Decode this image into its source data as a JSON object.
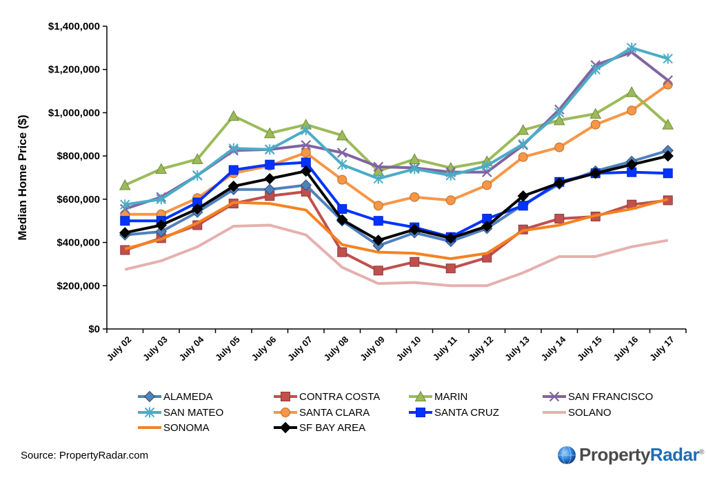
{
  "chart_data": {
    "type": "line",
    "title": "",
    "xlabel": "",
    "ylabel": "Median Home Price ($)",
    "ylim": [
      0,
      1400000
    ],
    "ytick_values": [
      0,
      200000,
      400000,
      600000,
      800000,
      1000000,
      1200000,
      1400000
    ],
    "ytick_labels": [
      "$0",
      "$200,000",
      "$400,000",
      "$600,000",
      "$800,000",
      "$1,000,000",
      "$1,200,000",
      "$1,400,000"
    ],
    "categories": [
      "July 02",
      "July 03",
      "July 04",
      "July 05",
      "July 06",
      "July 07",
      "July 08",
      "July 09",
      "July 10",
      "July 11",
      "July 12",
      "July 13",
      "July 14",
      "July 15",
      "July 16",
      "July 17"
    ],
    "legend_position": "bottom",
    "series": [
      {
        "name": "ALAMEDA",
        "color": "#4f81bd",
        "marker": "diamond",
        "values": [
          435000,
          450000,
          540000,
          645000,
          645000,
          665000,
          500000,
          385000,
          445000,
          405000,
          465000,
          575000,
          670000,
          730000,
          775000,
          825000
        ]
      },
      {
        "name": "CONTRA COSTA",
        "color": "#c0504d",
        "marker": "square",
        "values": [
          365000,
          420000,
          480000,
          580000,
          615000,
          635000,
          355000,
          270000,
          310000,
          280000,
          330000,
          460000,
          510000,
          520000,
          575000,
          595000
        ]
      },
      {
        "name": "MARIN",
        "color": "#9bbb59",
        "marker": "triangle",
        "values": [
          665000,
          740000,
          785000,
          985000,
          905000,
          945000,
          895000,
          730000,
          785000,
          745000,
          775000,
          920000,
          965000,
          995000,
          1095000,
          945000
        ]
      },
      {
        "name": "SAN FRANCISCO",
        "color": "#8064a2",
        "marker": "x",
        "values": [
          555000,
          610000,
          710000,
          825000,
          830000,
          850000,
          815000,
          750000,
          745000,
          725000,
          725000,
          850000,
          1015000,
          1220000,
          1280000,
          1150000
        ]
      },
      {
        "name": "SAN MATEO",
        "color": "#4bacc6",
        "marker": "star",
        "values": [
          575000,
          600000,
          710000,
          835000,
          830000,
          920000,
          760000,
          695000,
          740000,
          710000,
          755000,
          855000,
          1000000,
          1200000,
          1300000,
          1250000
        ]
      },
      {
        "name": "SANTA CLARA",
        "color": "#f79646",
        "marker": "circle",
        "values": [
          530000,
          530000,
          605000,
          720000,
          755000,
          815000,
          690000,
          570000,
          610000,
          595000,
          665000,
          795000,
          840000,
          945000,
          1010000,
          1130000
        ]
      },
      {
        "name": "SANTA CRUZ",
        "color": "#0033ff",
        "marker": "square",
        "values": [
          500000,
          500000,
          585000,
          735000,
          760000,
          770000,
          555000,
          500000,
          470000,
          425000,
          510000,
          570000,
          680000,
          720000,
          725000,
          720000
        ]
      },
      {
        "name": "SOLANO",
        "color": "#e6b0ae",
        "marker": "none",
        "values": [
          275000,
          315000,
          380000,
          475000,
          480000,
          435000,
          285000,
          210000,
          215000,
          200000,
          200000,
          260000,
          335000,
          335000,
          380000,
          410000
        ]
      },
      {
        "name": "SONOMA",
        "color": "#f58220",
        "marker": "none",
        "values": [
          370000,
          415000,
          490000,
          585000,
          580000,
          550000,
          390000,
          355000,
          350000,
          325000,
          350000,
          455000,
          480000,
          525000,
          555000,
          600000
        ]
      },
      {
        "name": "SF BAY AREA",
        "color": "#000000",
        "marker": "diamond",
        "values": [
          445000,
          480000,
          555000,
          660000,
          695000,
          730000,
          505000,
          410000,
          460000,
          420000,
          475000,
          615000,
          675000,
          720000,
          760000,
          800000
        ]
      }
    ]
  },
  "footer": {
    "source": "Source: PropertyRadar.com",
    "logo_part1": "Property",
    "logo_part2": "Radar",
    "logo_mark": "®"
  }
}
